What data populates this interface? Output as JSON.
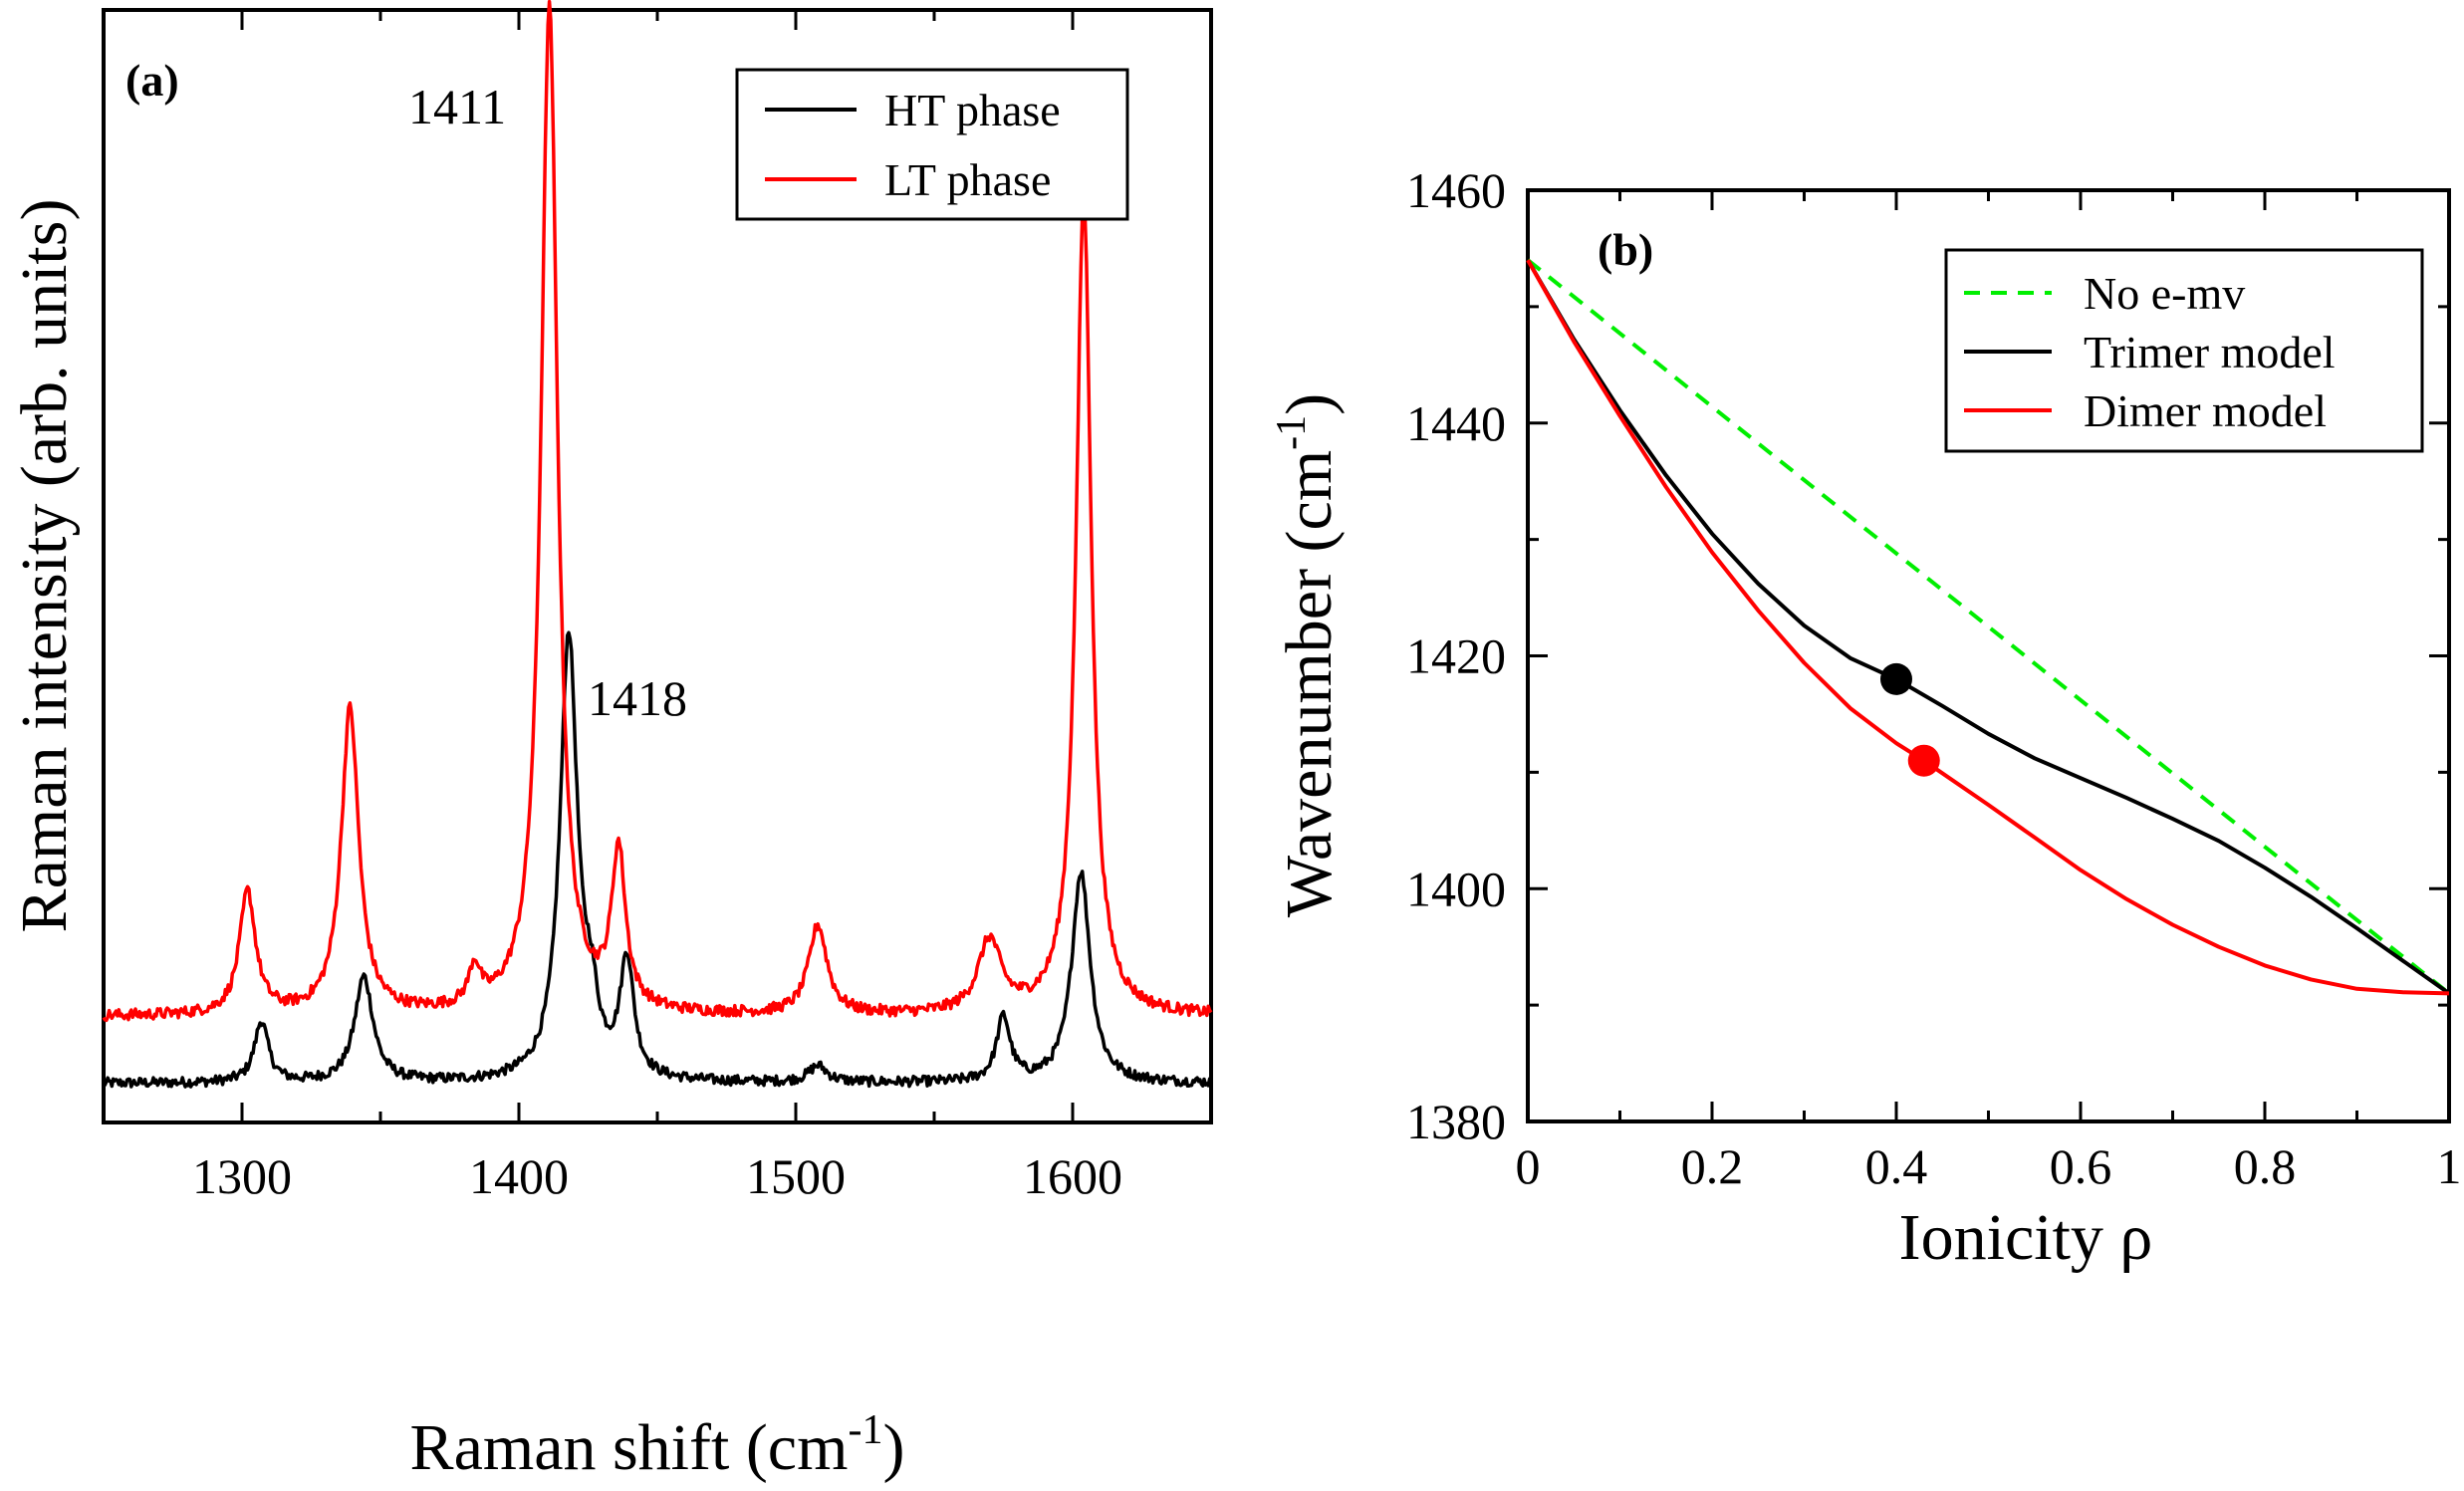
{
  "chart_data": [
    {
      "panel": "(a)",
      "type": "line",
      "xlabel": "Raman shift (cm",
      "xlabel_sup": "-1",
      "xlabel_end": ")",
      "ylabel": "Raman intensity (arb. units)",
      "xlim": [
        1250,
        1650
      ],
      "ylim": [
        0,
        100
      ],
      "x_ticks": [
        1300,
        1400,
        1500,
        1600
      ],
      "x_tick_labels": [
        "1300",
        "1400",
        "1500",
        "1600"
      ],
      "y_tick_labels": [],
      "legend": {
        "position": "top-right",
        "entries": [
          "HT phase",
          "LT phase"
        ]
      },
      "series": [
        {
          "name": "HT phase",
          "color": "#000000",
          "baseline": 3.5,
          "noise": 0.45,
          "peaks": [
            {
              "center": 1307,
              "height": 5.5,
              "width": 3.0
            },
            {
              "center": 1344,
              "height": 9.5,
              "width": 4.0
            },
            {
              "center": 1418,
              "height": 40.0,
              "width": 3.8
            },
            {
              "center": 1426,
              "height": 5.0,
              "width": 3.0
            },
            {
              "center": 1439,
              "height": 10.5,
              "width": 3.0
            },
            {
              "center": 1508,
              "height": 1.5,
              "width": 4.0
            },
            {
              "center": 1575,
              "height": 5.8,
              "width": 3.0
            },
            {
              "center": 1603,
              "height": 19.0,
              "width": 4.0
            }
          ]
        },
        {
          "name": "LT phase",
          "color": "#ff0000",
          "baseline": 9.5,
          "noise": 0.5,
          "peaks": [
            {
              "center": 1302,
              "height": 11.0,
              "width": 3.5
            },
            {
              "center": 1339,
              "height": 27.5,
              "width": 3.8
            },
            {
              "center": 1384,
              "height": 3.5,
              "width": 2.5
            },
            {
              "center": 1411,
              "height": 90.5,
              "width": 3.6
            },
            {
              "center": 1436,
              "height": 14.0,
              "width": 3.0
            },
            {
              "center": 1508,
              "height": 8.0,
              "width": 4.0
            },
            {
              "center": 1570,
              "height": 6.5,
              "width": 5.0
            },
            {
              "center": 1604,
              "height": 73.5,
              "width": 3.3
            }
          ]
        }
      ],
      "annotations": [
        {
          "text": "1411",
          "x": 1411,
          "color": "#ff0000"
        },
        {
          "text": "1418",
          "x": 1418,
          "color": "#000000"
        }
      ]
    },
    {
      "panel": "(b)",
      "type": "line",
      "xlabel": "Ionicity ρ",
      "ylabel": "Wavenumber (cm",
      "ylabel_sup": "-1",
      "ylabel_end": ")",
      "xlim": [
        0,
        1
      ],
      "ylim": [
        1380,
        1460
      ],
      "x_ticks": [
        0,
        0.2,
        0.4,
        0.6,
        0.8,
        1
      ],
      "x_tick_labels": [
        "0",
        "0.2",
        "0.4",
        "0.6",
        "0.8",
        "1"
      ],
      "y_ticks": [
        1380,
        1400,
        1420,
        1440,
        1460
      ],
      "y_tick_labels": [
        "1380",
        "1400",
        "1420",
        "1440",
        "1460"
      ],
      "legend": {
        "position": "top-right",
        "entries": [
          "No e-mv",
          "Trimer model",
          "Dimer model"
        ]
      },
      "series": [
        {
          "name": "No e-mv",
          "color": "#00ee00",
          "style": "dashed",
          "x": [
            0,
            1
          ],
          "y": [
            1454,
            1391
          ]
        },
        {
          "name": "Trimer model",
          "color": "#000000",
          "style": "solid",
          "x": [
            0,
            0.05,
            0.1,
            0.15,
            0.2,
            0.25,
            0.3,
            0.35,
            0.4,
            0.45,
            0.5,
            0.55,
            0.6,
            0.65,
            0.7,
            0.75,
            0.8,
            0.85,
            0.9,
            0.95,
            1.0
          ],
          "y": [
            1454,
            1447.2,
            1441.1,
            1435.5,
            1430.5,
            1426.2,
            1422.6,
            1419.8,
            1418.0,
            1415.7,
            1413.3,
            1411.2,
            1409.5,
            1407.8,
            1406.0,
            1404.1,
            1401.8,
            1399.3,
            1396.6,
            1393.8,
            1391
          ]
        },
        {
          "name": "Dimer model",
          "color": "#ff0000",
          "style": "solid",
          "x": [
            0,
            0.05,
            0.1,
            0.15,
            0.2,
            0.25,
            0.3,
            0.35,
            0.4,
            0.43,
            0.5,
            0.55,
            0.6,
            0.65,
            0.7,
            0.75,
            0.8,
            0.85,
            0.9,
            0.95,
            1.0
          ],
          "y": [
            1454,
            1447.0,
            1440.6,
            1434.5,
            1428.9,
            1423.9,
            1419.4,
            1415.5,
            1412.5,
            1411.0,
            1407.2,
            1404.4,
            1401.6,
            1399.1,
            1396.9,
            1395.0,
            1393.4,
            1392.2,
            1391.4,
            1391.1,
            1391
          ]
        }
      ],
      "markers": [
        {
          "x": 0.4,
          "y": 1418,
          "color": "#000000"
        },
        {
          "x": 0.43,
          "y": 1411,
          "color": "#ff0000"
        }
      ]
    }
  ]
}
